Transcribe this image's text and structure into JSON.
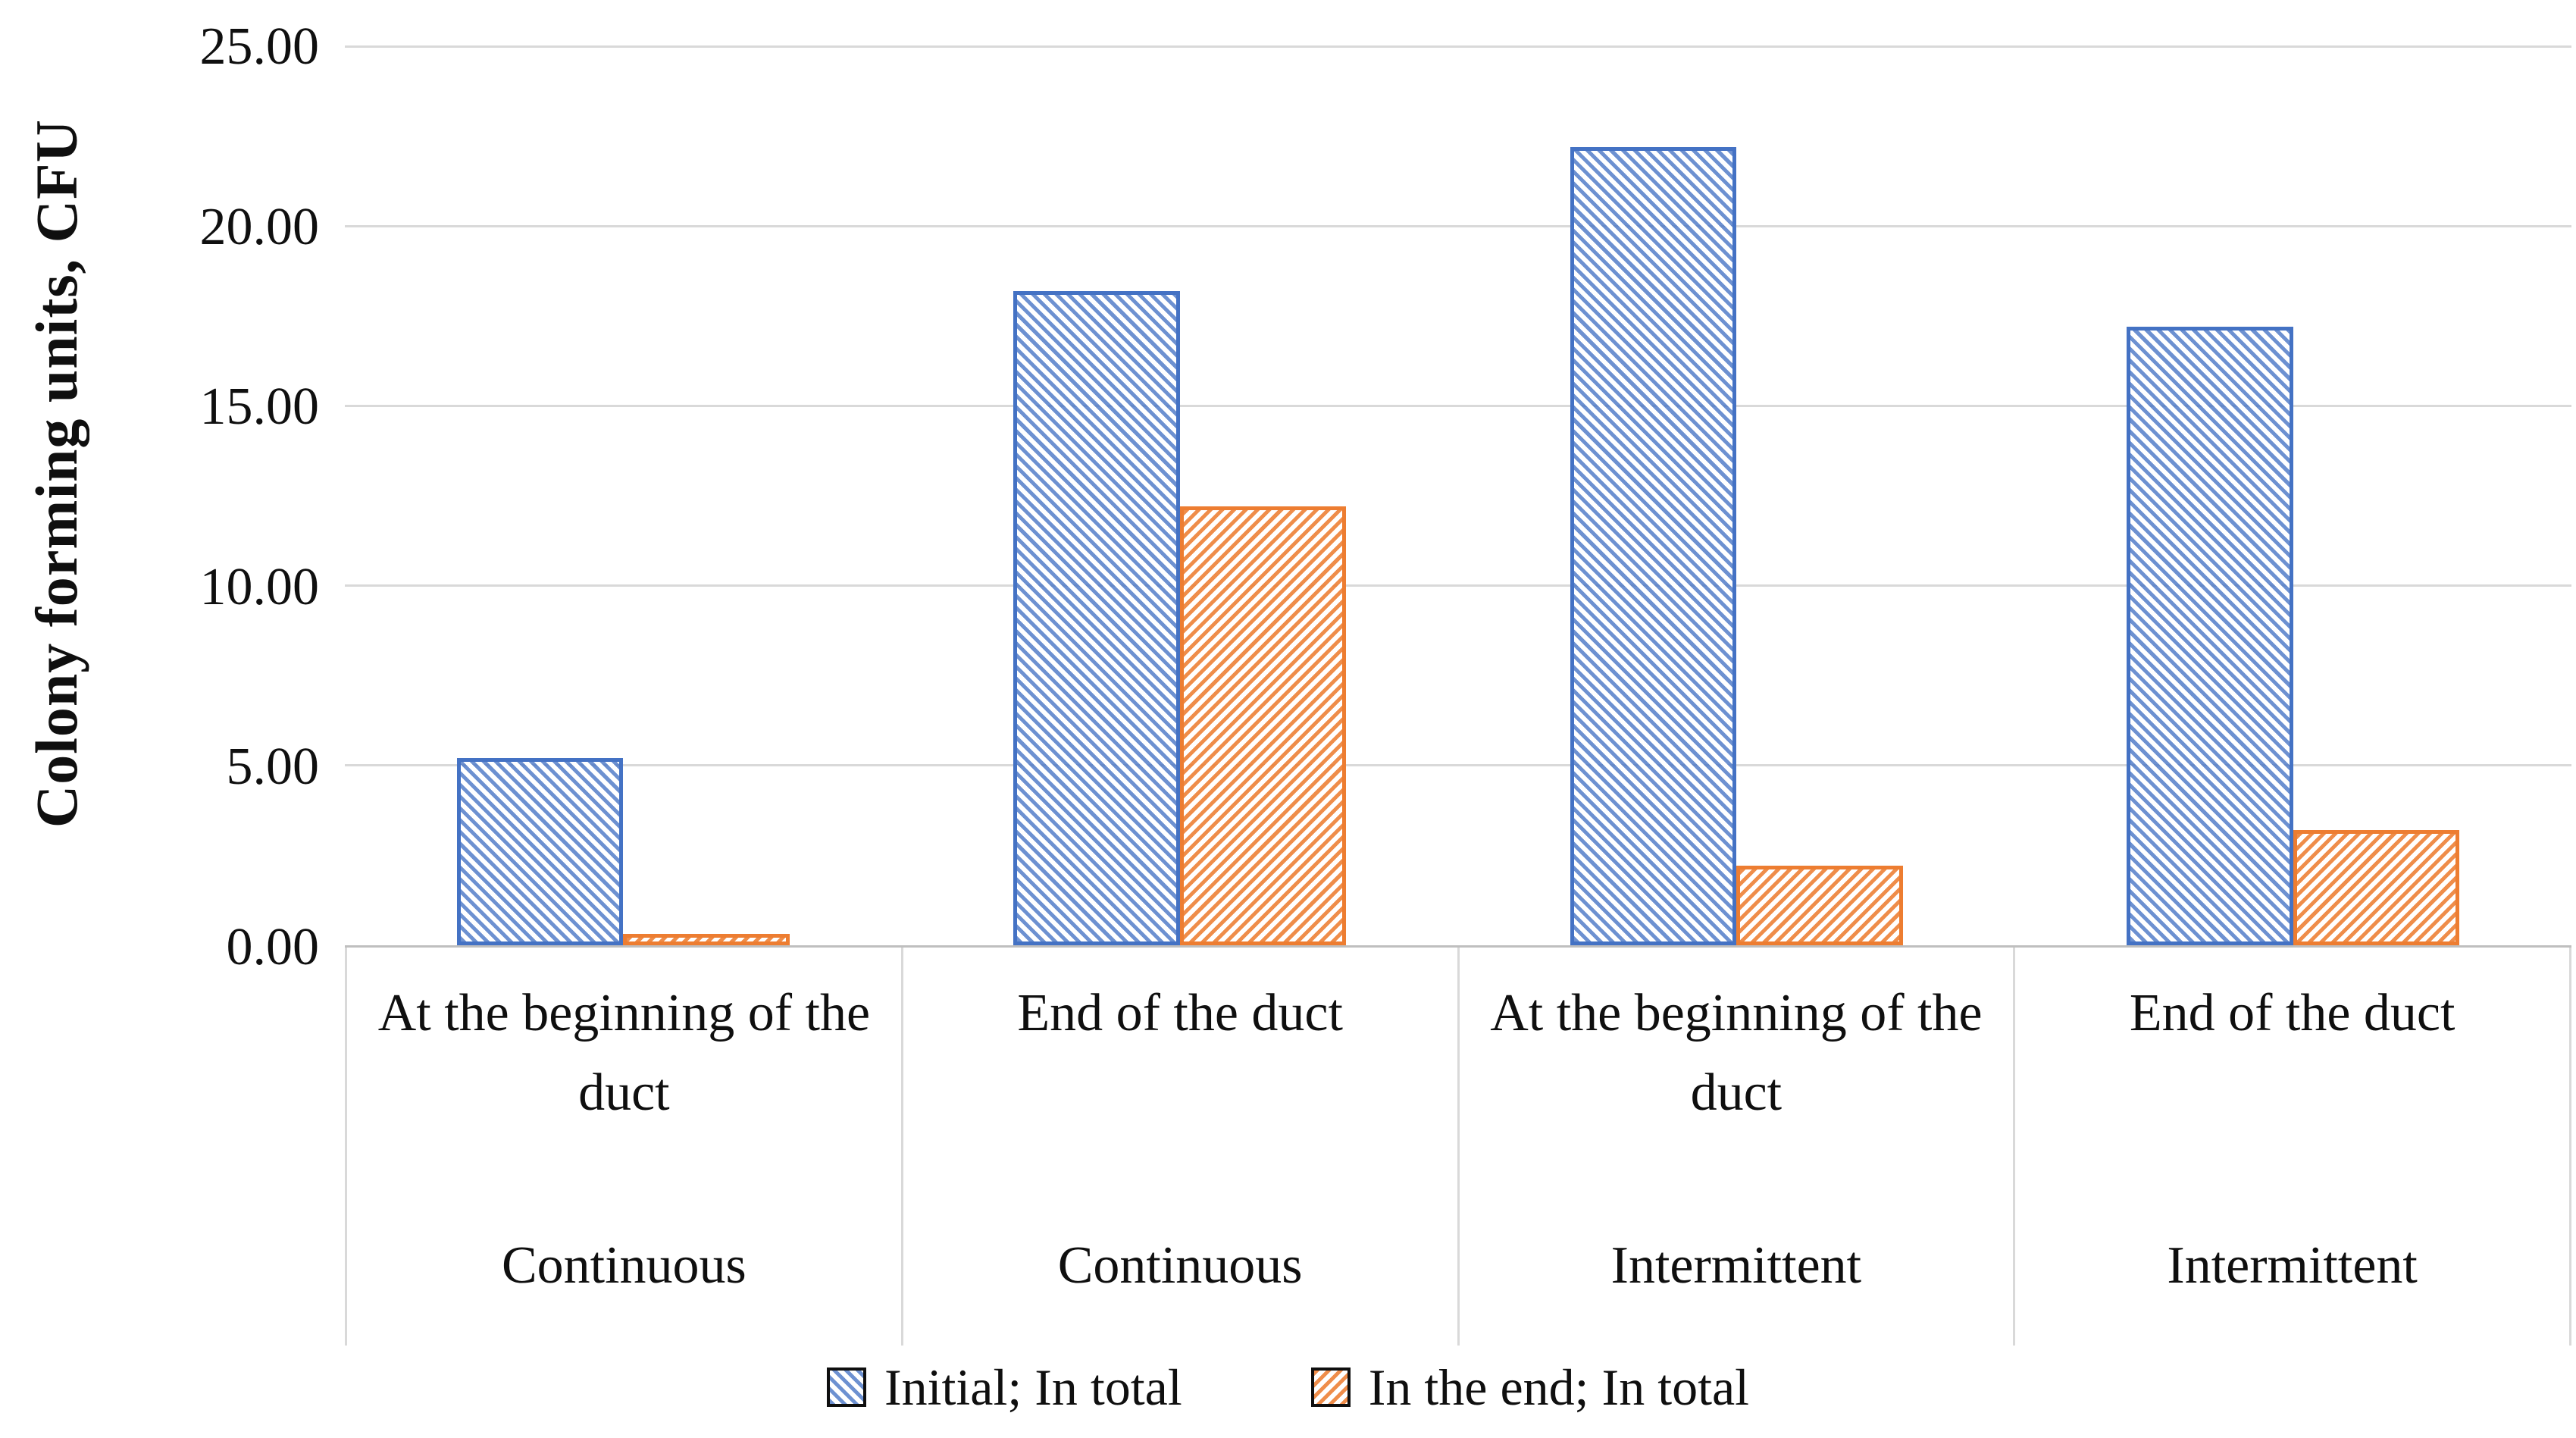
{
  "chart_data": {
    "type": "bar",
    "title": "",
    "ylabel": "Colony forming units, CFU",
    "xlabel": "",
    "ylim": [
      0,
      25
    ],
    "ytick_step": 5,
    "ytick_labels": [
      "0.00",
      "5.00",
      "10.00",
      "15.00",
      "20.00",
      "25.00"
    ],
    "grid": true,
    "legend_position": "bottom",
    "categories": [
      {
        "location": "At the beginning of the duct",
        "mode": "Continuous"
      },
      {
        "location": "End of the duct",
        "mode": "Continuous"
      },
      {
        "location": "At the beginning of the duct",
        "mode": "Intermittent"
      },
      {
        "location": "End of the duct",
        "mode": "Intermittent"
      }
    ],
    "series": [
      {
        "name": "Initial; In total",
        "color": "#4472C4",
        "hatch": "downward-diagonal",
        "values": [
          5.0,
          18.0,
          22.0,
          17.0
        ]
      },
      {
        "name": "In the end; In total",
        "color": "#ED7D31",
        "hatch": "upward-diagonal",
        "values": [
          0.1,
          12.0,
          2.0,
          3.0
        ]
      }
    ],
    "colors": {
      "series_blue": "#4472C4",
      "series_orange": "#ED7D31",
      "gridline": "#D9D9D9",
      "axis_line": "#BFBFBF",
      "text": "#0f0f0f",
      "background": "#ffffff"
    }
  }
}
